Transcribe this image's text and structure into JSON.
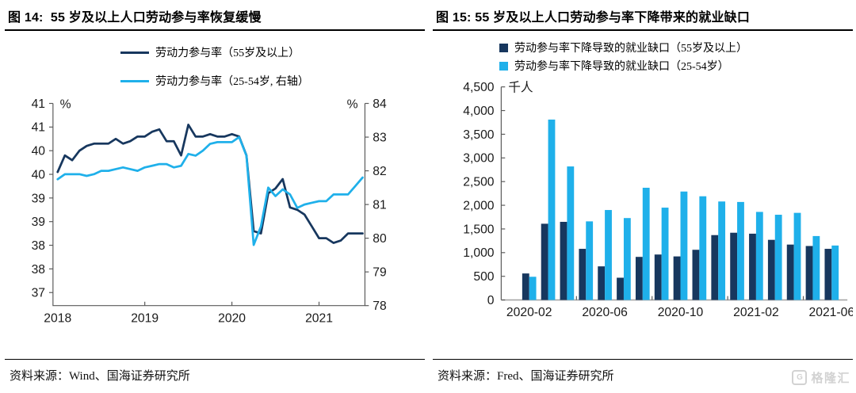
{
  "watermark": {
    "icon_label": "G",
    "text": "格隆汇"
  },
  "chart_data": [
    {
      "type": "line",
      "figure_no": "图 14",
      "title": "图 14:  55 岁及以上人口劳动参与率恢复缓慢",
      "source": "资料来源：Wind、国海证券研究所",
      "x_monthly": {
        "start": "2018-01",
        "end": "2021-07"
      },
      "x_tick_labels": [
        "2018",
        "2019",
        "2020",
        "2021"
      ],
      "x_tick_months": [
        0,
        12,
        24,
        36
      ],
      "x_inner_tick_months": [
        12,
        24,
        36
      ],
      "left_axis": {
        "unit": "%",
        "tick_values": [
          41,
          40.5,
          40,
          39.5,
          39,
          38.5,
          38,
          37.5,
          37
        ],
        "tick_labels": [
          "41",
          "41",
          "40",
          "40",
          "39",
          "39",
          "38",
          "38",
          "37"
        ]
      },
      "right_axis": {
        "unit": "%",
        "tick_values": [
          84,
          83,
          82,
          81,
          80,
          79,
          78
        ],
        "tick_labels": [
          "84",
          "83",
          "82",
          "81",
          "80",
          "79",
          "78"
        ]
      },
      "series": [
        {
          "name": "劳动力参与率（55岁及以上）",
          "axis": "left",
          "color": "#17375e",
          "values": [
            39.55,
            39.9,
            39.8,
            40.0,
            40.1,
            40.15,
            40.15,
            40.15,
            40.25,
            40.15,
            40.2,
            40.3,
            40.3,
            40.4,
            40.45,
            40.2,
            40.2,
            39.9,
            40.55,
            40.3,
            40.3,
            40.35,
            40.3,
            40.3,
            40.35,
            40.3,
            39.9,
            38.3,
            38.25,
            39.1,
            39.2,
            39.4,
            38.8,
            38.75,
            38.65,
            38.4,
            38.15,
            38.15,
            38.05,
            38.1,
            38.25,
            38.25,
            38.25
          ]
        },
        {
          "name": "劳动力参与率（25-54岁, 右轴）",
          "axis": "right",
          "color": "#1fb0ea",
          "values": [
            81.75,
            81.9,
            81.9,
            81.9,
            81.85,
            81.9,
            82.0,
            82.0,
            82.05,
            82.1,
            82.05,
            82.0,
            82.1,
            82.15,
            82.2,
            82.2,
            82.1,
            82.15,
            82.5,
            82.45,
            82.6,
            82.8,
            82.85,
            82.85,
            82.85,
            83.0,
            82.45,
            79.8,
            80.35,
            81.5,
            81.25,
            81.45,
            81.3,
            80.9,
            81.0,
            81.05,
            81.1,
            81.1,
            81.3,
            81.3,
            81.3,
            81.55,
            81.8
          ]
        }
      ]
    },
    {
      "type": "bar",
      "figure_no": "图 15",
      "title": "图 15: 55 岁及以上人口劳动参与率下降带来的就业缺口",
      "source": "资料来源：Fred、国海证券研究所",
      "unit": "千人",
      "categories": [
        "2020-02",
        "2020-03",
        "2020-04",
        "2020-05",
        "2020-06",
        "2020-07",
        "2020-08",
        "2020-09",
        "2020-10",
        "2020-11",
        "2020-12",
        "2021-01",
        "2021-02",
        "2021-03",
        "2021-04",
        "2021-05",
        "2021-06"
      ],
      "x_tick_labels": [
        "2020-02",
        "2020-06",
        "2020-10",
        "2021-02",
        "2021-06"
      ],
      "x_tick_indices": [
        0,
        4,
        8,
        12,
        16
      ],
      "x_inner_tick_after": [
        2,
        6,
        10,
        14
      ],
      "y_axis": {
        "min": 0,
        "max": 4500,
        "step": 500,
        "tick_labels": [
          "4,500",
          "4,000",
          "3,500",
          "3,000",
          "2,500",
          "2,000",
          "1,500",
          "1,000",
          "500",
          "0"
        ]
      },
      "series": [
        {
          "name": "劳动参与率下降导致的就业缺口（55岁及以上）",
          "color": "#17375e",
          "values": [
            560,
            1610,
            1650,
            1080,
            710,
            470,
            910,
            960,
            920,
            1060,
            1370,
            1420,
            1400,
            1270,
            1170,
            1140,
            1080
          ]
        },
        {
          "name": "劳动参与率下降导致的就业缺口（25-54岁）",
          "color": "#1fb0ea",
          "values": [
            490,
            3810,
            2820,
            1660,
            1900,
            1730,
            2370,
            1950,
            2290,
            2190,
            2080,
            2070,
            1860,
            1800,
            1840,
            1350,
            1150
          ]
        }
      ]
    }
  ]
}
